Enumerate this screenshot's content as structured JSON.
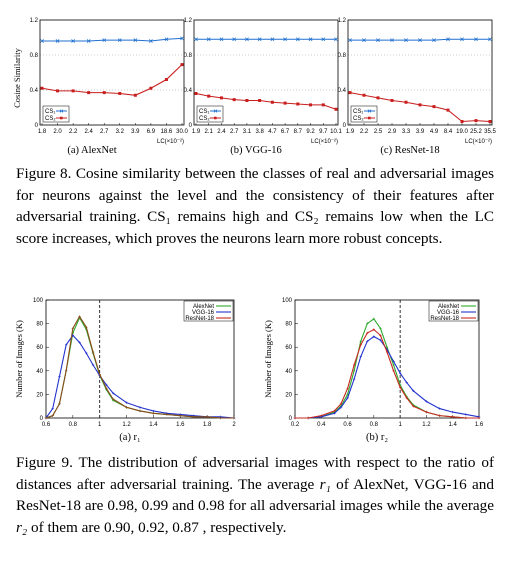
{
  "figure8": {
    "caption_label": "Figure 8.",
    "caption_text": "Cosine similarity between the classes of real and adversarial images for neurons against the level and the consistency of their features after adversarial training. CS₁ remains high and CS₂ remains low when the LC score increases, which proves the neurons learn more robust concepts.",
    "ylabel": "Cosine Similarity",
    "xlabel": "LC(×10⁻²)",
    "yticks": [
      "0",
      "0.4",
      "0.8",
      "1.2"
    ],
    "legend": [
      "CS₁",
      "CS₂"
    ]
  },
  "figure9": {
    "caption_label": "Figure 9.",
    "caption_parts": [
      "The distribution of adversarial images with respect to the ratio of distances after adversarial training. The average ",
      "r₁",
      " of AlexNet, VGG-16 and ResNet-18 are 0.98, 0.99 and 0.98 for all adversarial images while the average ",
      "r₂",
      " of them are 0.90, 0.92, 0.87 , respectively."
    ],
    "ylabel": "Number of Images (K)",
    "yticks": [
      "0",
      "20",
      "40",
      "60",
      "80",
      "100"
    ],
    "legend": [
      "AlexNet",
      "VGG-16",
      "ResNet-18"
    ]
  },
  "colors": {
    "cs1": "#1f6fd0",
    "cs2": "#c81e1e",
    "alexnet": "#2ea82e",
    "vgg": "#2233cc",
    "resnet": "#c8281e",
    "resnet_shaded": "#8a4a1a"
  },
  "chart_data": [
    {
      "type": "line",
      "subtitle": "(a) AlexNet",
      "x": [
        "1.8",
        "2.0",
        "2.2",
        "2.4",
        "2.7",
        "3.2",
        "3.9",
        "6.9",
        "18.6",
        "30.0"
      ],
      "series": [
        {
          "name": "CS₁",
          "values": [
            0.96,
            0.96,
            0.96,
            0.96,
            0.97,
            0.97,
            0.97,
            0.96,
            0.98,
            0.99
          ]
        },
        {
          "name": "CS₂",
          "values": [
            0.42,
            0.39,
            0.39,
            0.37,
            0.37,
            0.36,
            0.34,
            0.42,
            0.52,
            0.69
          ]
        }
      ],
      "ylim": [
        0,
        1.2
      ],
      "xlabel": "LC(×10⁻²)",
      "ylabel": "Cosine Similarity"
    },
    {
      "type": "line",
      "subtitle": "(b) VGG-16",
      "x": [
        "1.9",
        "2.1",
        "2.4",
        "2.7",
        "3.1",
        "3.8",
        "4.7",
        "6.7",
        "8.7",
        "9.2",
        "9.7",
        "10.1"
      ],
      "series": [
        {
          "name": "CS₁",
          "values": [
            0.98,
            0.98,
            0.98,
            0.98,
            0.98,
            0.98,
            0.98,
            0.98,
            0.98,
            0.98,
            0.98,
            0.98
          ]
        },
        {
          "name": "CS₂",
          "values": [
            0.36,
            0.33,
            0.31,
            0.29,
            0.28,
            0.28,
            0.26,
            0.25,
            0.24,
            0.23,
            0.23,
            0.18
          ]
        }
      ],
      "ylim": [
        0,
        1.2
      ],
      "xlabel": "LC(×10⁻²)"
    },
    {
      "type": "line",
      "subtitle": "(c) ResNet-18",
      "x": [
        "1.9",
        "2.2",
        "2.5",
        "2.9",
        "3.3",
        "3.9",
        "4.9",
        "8.4",
        "19.0",
        "25.2",
        "35.5"
      ],
      "series": [
        {
          "name": "CS₁",
          "values": [
            0.97,
            0.97,
            0.97,
            0.97,
            0.97,
            0.97,
            0.97,
            0.98,
            0.98,
            0.98,
            0.98
          ]
        },
        {
          "name": "CS₂",
          "values": [
            0.37,
            0.34,
            0.31,
            0.28,
            0.26,
            0.23,
            0.21,
            0.17,
            0.04,
            0.05,
            0.04
          ]
        }
      ],
      "ylim": [
        0,
        1.2
      ],
      "xlabel": "LC(×10⁻²)"
    },
    {
      "type": "line",
      "subtitle": "(a) r₁",
      "xlim": [
        0.6,
        2.0
      ],
      "xticks": [
        "0.6",
        "0.8",
        "1",
        "1.2",
        "1.4",
        "1.6",
        "1.8",
        "2"
      ],
      "ylim": [
        0,
        100
      ],
      "ylabel": "Number of Images (K)",
      "reference_line_x": 1.0,
      "series": [
        {
          "name": "AlexNet",
          "x": [
            0.6,
            0.65,
            0.7,
            0.75,
            0.8,
            0.85,
            0.9,
            0.95,
            1.0,
            1.05,
            1.1,
            1.2,
            1.3,
            1.4,
            1.5,
            1.6,
            1.7,
            1.8,
            1.9,
            2.0
          ],
          "values": [
            0,
            2,
            12,
            40,
            72,
            85,
            75,
            55,
            36,
            24,
            15,
            9,
            6,
            4,
            3,
            2,
            1,
            1,
            0,
            0
          ]
        },
        {
          "name": "VGG-16",
          "x": [
            0.6,
            0.65,
            0.7,
            0.75,
            0.8,
            0.85,
            0.9,
            0.95,
            1.0,
            1.05,
            1.1,
            1.2,
            1.3,
            1.4,
            1.5,
            1.6,
            1.7,
            1.8,
            1.9,
            2.0
          ],
          "values": [
            0,
            8,
            35,
            62,
            70,
            64,
            55,
            45,
            36,
            28,
            21,
            13,
            9,
            6,
            4,
            3,
            2,
            1,
            1,
            0
          ]
        },
        {
          "name": "ResNet-18",
          "x": [
            0.6,
            0.65,
            0.7,
            0.75,
            0.8,
            0.85,
            0.9,
            0.95,
            1.0,
            1.05,
            1.1,
            1.2,
            1.3,
            1.4,
            1.5,
            1.6,
            1.7,
            1.8,
            1.9,
            2.0
          ],
          "values": [
            0,
            2,
            12,
            40,
            76,
            86,
            77,
            56,
            37,
            25,
            16,
            9,
            6,
            4,
            3,
            2,
            1,
            1,
            0,
            0
          ]
        }
      ]
    },
    {
      "type": "line",
      "subtitle": "(b) r₂",
      "xlim": [
        0.2,
        1.6
      ],
      "xticks": [
        "0.2",
        "0.4",
        "0.6",
        "0.8",
        "1",
        "1.2",
        "1.4",
        "1.6"
      ],
      "ylim": [
        0,
        100
      ],
      "ylabel": "Number of Images (K)",
      "reference_line_x": 1.0,
      "series": [
        {
          "name": "AlexNet",
          "x": [
            0.2,
            0.3,
            0.4,
            0.5,
            0.55,
            0.6,
            0.65,
            0.7,
            0.75,
            0.8,
            0.85,
            0.9,
            0.95,
            1.0,
            1.05,
            1.1,
            1.2,
            1.3,
            1.4,
            1.5,
            1.6
          ],
          "values": [
            0,
            0,
            1,
            5,
            10,
            20,
            40,
            65,
            80,
            84,
            76,
            60,
            45,
            28,
            18,
            11,
            5,
            2,
            1,
            0,
            0
          ]
        },
        {
          "name": "VGG-16",
          "x": [
            0.2,
            0.3,
            0.4,
            0.5,
            0.55,
            0.6,
            0.65,
            0.7,
            0.75,
            0.8,
            0.85,
            0.9,
            0.95,
            1.0,
            1.05,
            1.1,
            1.2,
            1.3,
            1.4,
            1.5,
            1.6
          ],
          "values": [
            0,
            0,
            1,
            4,
            9,
            17,
            33,
            52,
            65,
            69,
            66,
            58,
            48,
            38,
            30,
            23,
            14,
            8,
            5,
            3,
            1
          ]
        },
        {
          "name": "ResNet-18",
          "x": [
            0.2,
            0.3,
            0.4,
            0.5,
            0.55,
            0.6,
            0.65,
            0.7,
            0.75,
            0.8,
            0.85,
            0.9,
            0.95,
            1.0,
            1.05,
            1.1,
            1.2,
            1.3,
            1.4,
            1.5,
            1.6
          ],
          "values": [
            0,
            0,
            2,
            6,
            12,
            25,
            45,
            62,
            72,
            75,
            70,
            56,
            40,
            26,
            17,
            10,
            5,
            2,
            1,
            0,
            0
          ]
        }
      ]
    }
  ]
}
